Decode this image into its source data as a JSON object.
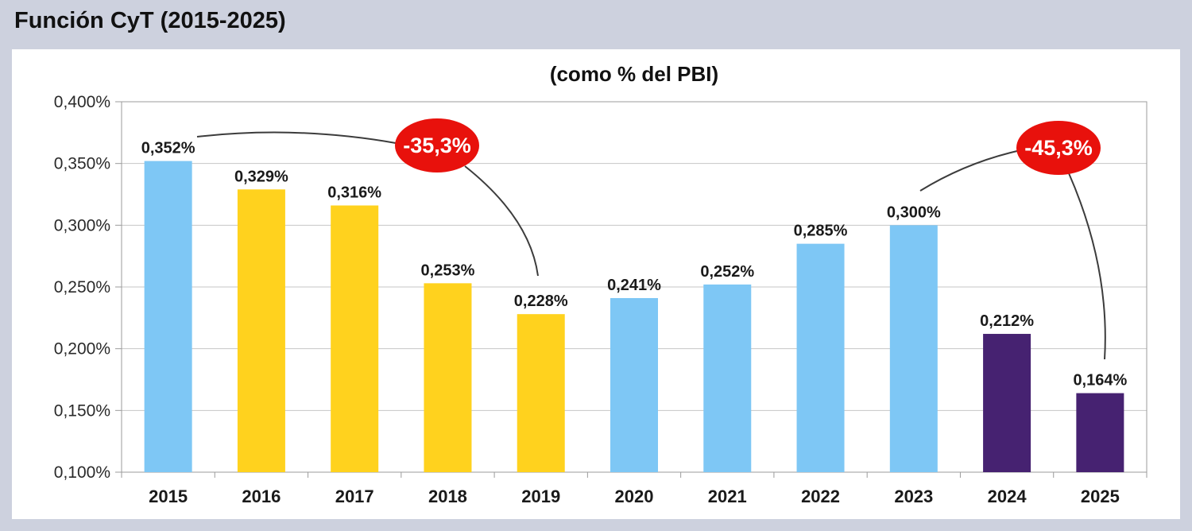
{
  "page": {
    "title": "Función CyT (2015-2025)",
    "background_color": "#CDD1DE",
    "panel_color": "#FFFFFF"
  },
  "chart_data": {
    "type": "bar",
    "title": "(como % del PBI)",
    "categories": [
      "2015",
      "2016",
      "2017",
      "2018",
      "2019",
      "2020",
      "2021",
      "2022",
      "2023",
      "2024",
      "2025"
    ],
    "values": [
      0.352,
      0.329,
      0.316,
      0.253,
      0.228,
      0.241,
      0.252,
      0.285,
      0.3,
      0.212,
      0.164
    ],
    "value_labels": [
      "0,352%",
      "0,329%",
      "0,316%",
      "0,253%",
      "0,228%",
      "0,241%",
      "0,252%",
      "0,285%",
      "0,300%",
      "0,212%",
      "0,164%"
    ],
    "bar_colors": [
      "#7EC7F5",
      "#FFD21E",
      "#FFD21E",
      "#FFD21E",
      "#FFD21E",
      "#7EC7F5",
      "#7EC7F5",
      "#7EC7F5",
      "#7EC7F5",
      "#462271",
      "#462271"
    ],
    "ylim": [
      0.1,
      0.4
    ],
    "ytick_values": [
      0.4,
      0.35,
      0.3,
      0.25,
      0.2,
      0.15,
      0.1
    ],
    "ytick_labels": [
      "0,400%",
      "0,350%",
      "0,300%",
      "0,250%",
      "0,200%",
      "0,150%",
      "0,100%"
    ],
    "grid": true,
    "legend": "none",
    "annotations": [
      {
        "text": "-35,3%",
        "shape": "ellipse",
        "color": "#E8110C",
        "text_color": "#FFFFFF",
        "from_category": "2015",
        "to_category": "2019"
      },
      {
        "text": "-45,3%",
        "shape": "ellipse",
        "color": "#E8110C",
        "text_color": "#FFFFFF",
        "from_category": "2023",
        "to_category": "2025"
      }
    ]
  },
  "colors": {
    "gridline": "#C6C6C6",
    "axis": "#9B9B9B",
    "label_text": "#1A1A1A",
    "connector_line": "#3C3C3C"
  }
}
